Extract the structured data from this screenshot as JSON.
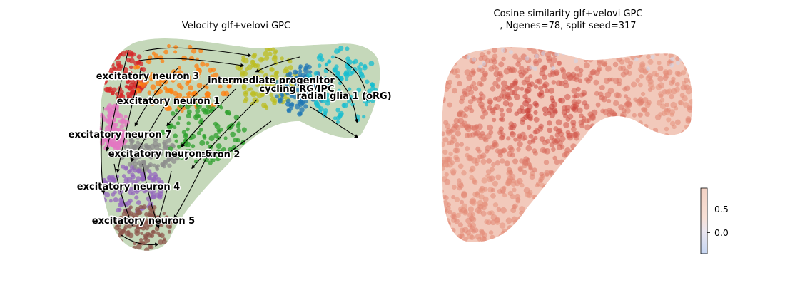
{
  "chart_data": [
    {
      "type": "scatter",
      "subtype": "embedding-streamplot",
      "title": "Velocity glf+velovi GPC",
      "xlabel": "",
      "ylabel": "",
      "axes_visible": false,
      "grid": false,
      "legend": "on data",
      "overlay": "velocity streamlines with arrowheads",
      "clusters": [
        {
          "name": "excitatory neuron 3",
          "color": "#d62728"
        },
        {
          "name": "intermediate progenitor",
          "color": "#bcbd22"
        },
        {
          "name": "cycling RG/IPC",
          "color": "#1f77b4"
        },
        {
          "name": "radial glia 1 (oRG)",
          "color": "#17becf"
        },
        {
          "name": "excitatory neuron 1",
          "color": "#ff7f0e"
        },
        {
          "name": "excitatory neuron 7",
          "color": "#e377c2"
        },
        {
          "name": "excitatory neuron 6",
          "color": "#8c8c8c"
        },
        {
          "name": "excitatory neuron 2",
          "color": "#2ca02c"
        },
        {
          "name": "excitatory neuron 4",
          "color": "#9467bd"
        },
        {
          "name": "excitatory neuron 5",
          "color": "#8c564b"
        }
      ],
      "overlapping_label_fragment": "ry neuron 2"
    },
    {
      "type": "scatter",
      "subtype": "embedding-colored",
      "title": "Cosine similarity glf+velovi GPC",
      "subtitle": ", Ngenes=78, split seed=317",
      "xlabel": "",
      "ylabel": "",
      "axes_visible": false,
      "grid": false,
      "colormap": "coolwarm",
      "colorbar": {
        "ticks": [
          "0.5",
          "0.0"
        ],
        "tick_values": [
          0.5,
          0.0
        ],
        "range": [
          -0.45,
          0.95
        ]
      }
    }
  ]
}
